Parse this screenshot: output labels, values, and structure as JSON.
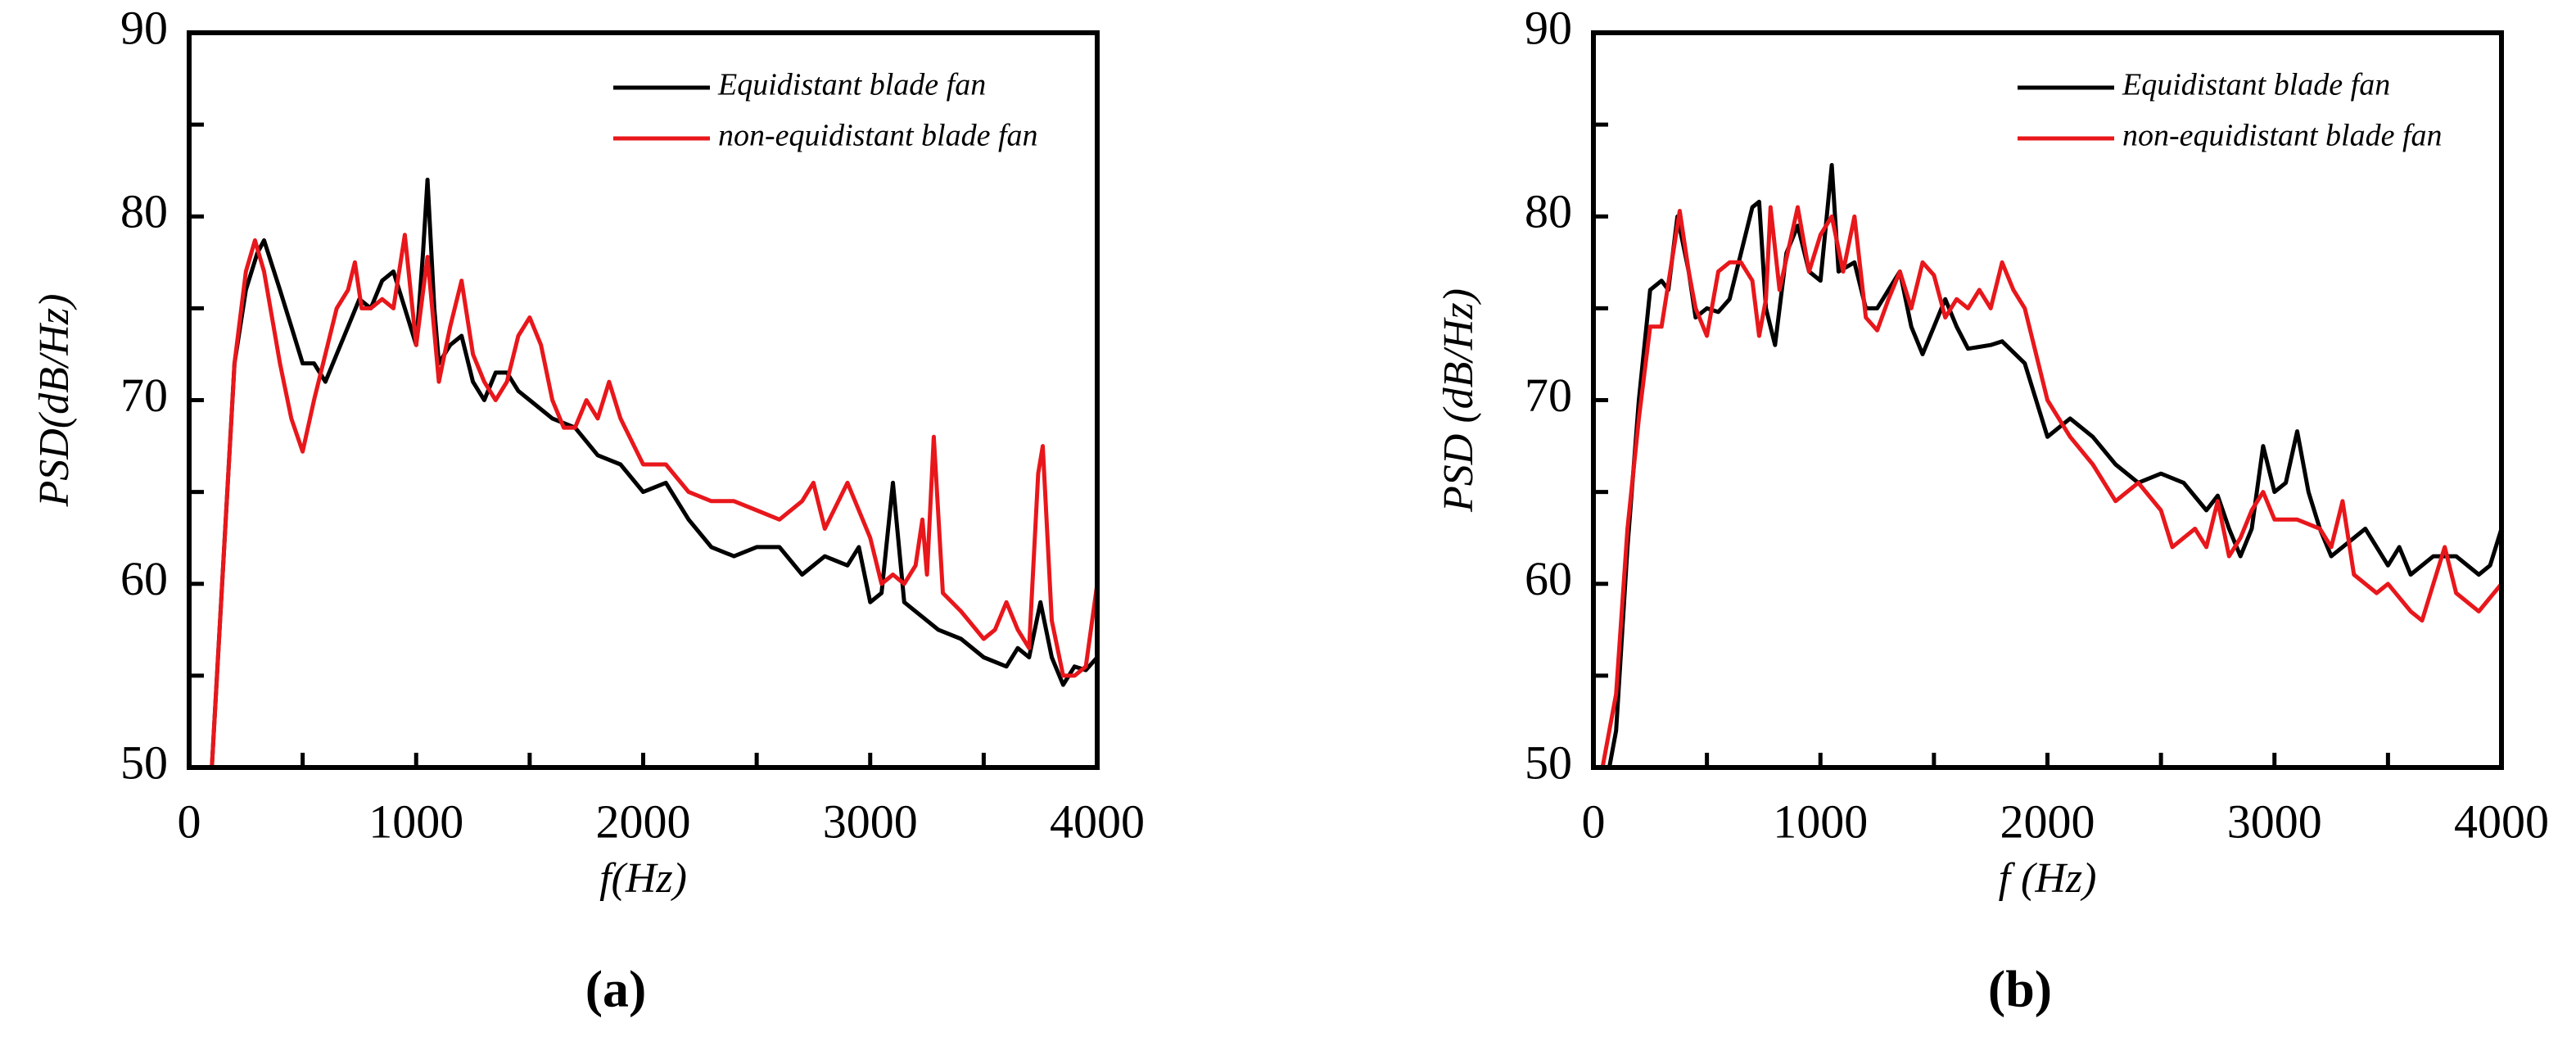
{
  "chart_data": [
    {
      "type": "line",
      "xlabel": "f(Hz)",
      "ylabel": "PSD(dB/Hz)",
      "caption": "(a)",
      "xlim": [
        0,
        4000
      ],
      "xticks": [
        0,
        1000,
        2000,
        3000,
        4000
      ],
      "ylim": [
        50,
        90
      ],
      "yticks": [
        50,
        60,
        70,
        80,
        90
      ],
      "legend": "upper right",
      "series": [
        {
          "name": "Equidistant blade fan",
          "color": "#000000",
          "x": [
            100,
            200,
            250,
            300,
            330,
            400,
            450,
            500,
            550,
            600,
            650,
            700,
            750,
            800,
            850,
            900,
            950,
            1000,
            1030,
            1050,
            1080,
            1100,
            1150,
            1200,
            1250,
            1300,
            1350,
            1400,
            1450,
            1500,
            1600,
            1700,
            1800,
            1900,
            2000,
            2100,
            2200,
            2300,
            2400,
            2500,
            2600,
            2700,
            2800,
            2900,
            2950,
            3000,
            3050,
            3100,
            3150,
            3200,
            3300,
            3400,
            3500,
            3600,
            3650,
            3700,
            3750,
            3800,
            3850,
            3900,
            3950,
            4000
          ],
          "values": [
            50,
            72,
            76,
            78,
            78.7,
            76,
            74,
            72,
            72,
            71,
            72.5,
            74,
            75.5,
            75,
            76.5,
            77,
            75,
            73,
            78,
            82,
            75,
            72,
            73,
            73.5,
            71,
            70,
            71.5,
            71.5,
            70.5,
            70,
            69,
            68.5,
            67,
            66.5,
            65,
            65.5,
            63.5,
            62,
            61.5,
            62,
            62,
            60.5,
            61.5,
            61,
            62,
            59,
            59.5,
            65.5,
            59,
            58.5,
            57.5,
            57,
            56,
            55.5,
            56.5,
            56,
            59,
            56,
            54.5,
            55.5,
            55.3,
            56
          ]
        },
        {
          "name": "non-equidistant blade fan",
          "color": "#e8171b",
          "x": [
            100,
            200,
            250,
            290,
            330,
            400,
            450,
            500,
            550,
            600,
            650,
            700,
            730,
            760,
            800,
            850,
            900,
            950,
            1000,
            1050,
            1100,
            1150,
            1200,
            1250,
            1300,
            1350,
            1400,
            1450,
            1500,
            1550,
            1600,
            1650,
            1700,
            1750,
            1800,
            1850,
            1900,
            2000,
            2100,
            2200,
            2300,
            2400,
            2500,
            2600,
            2700,
            2750,
            2800,
            2900,
            3000,
            3050,
            3100,
            3150,
            3200,
            3230,
            3250,
            3280,
            3320,
            3400,
            3500,
            3550,
            3600,
            3650,
            3700,
            3740,
            3760,
            3800,
            3850,
            3900,
            3950,
            4000
          ],
          "values": [
            50,
            72,
            77,
            78.7,
            77,
            72,
            69,
            67.2,
            70,
            72.5,
            75,
            76,
            77.5,
            75,
            75,
            75.5,
            75,
            79,
            73,
            77.8,
            71,
            74,
            76.5,
            72.5,
            71,
            70,
            71,
            73.5,
            74.5,
            73,
            70,
            68.5,
            68.5,
            70,
            69,
            71,
            69,
            66.5,
            66.5,
            65,
            64.5,
            64.5,
            64,
            63.5,
            64.5,
            65.5,
            63,
            65.5,
            62.5,
            60,
            60.5,
            60,
            61,
            63.5,
            60.5,
            68,
            59.5,
            58.5,
            57,
            57.5,
            59,
            57.5,
            56.5,
            66,
            67.5,
            58,
            55,
            55,
            55.5,
            60
          ]
        }
      ]
    },
    {
      "type": "line",
      "xlabel": "f (Hz)",
      "ylabel": "PSD (dB/Hz)",
      "caption": "(b)",
      "xlim": [
        0,
        4000
      ],
      "xticks": [
        0,
        1000,
        2000,
        3000,
        4000
      ],
      "ylim": [
        50,
        90
      ],
      "yticks": [
        50,
        60,
        70,
        80,
        90
      ],
      "legend": "upper right",
      "series": [
        {
          "name": "Equidistant blade fan",
          "color": "#000000",
          "x": [
            70,
            100,
            150,
            200,
            250,
            300,
            330,
            370,
            420,
            450,
            500,
            550,
            600,
            650,
            700,
            730,
            760,
            800,
            850,
            900,
            950,
            1000,
            1050,
            1080,
            1150,
            1200,
            1250,
            1300,
            1350,
            1400,
            1450,
            1500,
            1550,
            1600,
            1650,
            1750,
            1800,
            1900,
            2000,
            2050,
            2100,
            2200,
            2300,
            2400,
            2500,
            2600,
            2700,
            2750,
            2800,
            2850,
            2900,
            2950,
            3000,
            3050,
            3100,
            3150,
            3200,
            3250,
            3300,
            3400,
            3500,
            3550,
            3600,
            3700,
            3800,
            3900,
            3950,
            4000
          ],
          "values": [
            50,
            52,
            62,
            70,
            76,
            76.5,
            76,
            80,
            77,
            74.5,
            75,
            74.8,
            75.5,
            78,
            80.5,
            80.8,
            75,
            73,
            78,
            79.5,
            77,
            76.5,
            82.8,
            77,
            77.5,
            75,
            75,
            76,
            77,
            74,
            72.5,
            74,
            75.5,
            74,
            72.8,
            73,
            73.2,
            72,
            68,
            68.5,
            69,
            68,
            66.5,
            65.5,
            66,
            65.5,
            64,
            64.8,
            63,
            61.5,
            63,
            67.5,
            65,
            65.5,
            68.3,
            65,
            63,
            61.5,
            62,
            63,
            61,
            62,
            60.5,
            61.5,
            61.5,
            60.5,
            61,
            63
          ]
        },
        {
          "name": "non-equidistant blade fan",
          "color": "#e8171b",
          "x": [
            40,
            100,
            150,
            200,
            250,
            300,
            380,
            420,
            450,
            500,
            550,
            600,
            650,
            700,
            730,
            760,
            780,
            820,
            900,
            950,
            1000,
            1050,
            1100,
            1150,
            1200,
            1250,
            1300,
            1350,
            1400,
            1450,
            1500,
            1550,
            1600,
            1650,
            1700,
            1750,
            1800,
            1850,
            1900,
            2000,
            2100,
            2200,
            2300,
            2400,
            2500,
            2550,
            2650,
            2700,
            2750,
            2800,
            2850,
            2900,
            2950,
            3000,
            3100,
            3200,
            3250,
            3300,
            3350,
            3400,
            3450,
            3500,
            3600,
            3650,
            3700,
            3750,
            3800,
            3900,
            4000
          ],
          "values": [
            50,
            54,
            63,
            69,
            74,
            74,
            80.3,
            77,
            75,
            73.5,
            77,
            77.5,
            77.5,
            76.5,
            73.5,
            75.5,
            80.5,
            76,
            80.5,
            77,
            79,
            80,
            77,
            80,
            74.5,
            73.8,
            75.5,
            77,
            75,
            77.5,
            76.8,
            74.5,
            75.5,
            75,
            76,
            75,
            77.5,
            76,
            75,
            70,
            68,
            66.5,
            64.5,
            65.5,
            64,
            62,
            63,
            62,
            64.5,
            61.5,
            62.5,
            64,
            65,
            63.5,
            63.5,
            63,
            62,
            64.5,
            60.5,
            60,
            59.5,
            60,
            58.5,
            58,
            60,
            62,
            59.5,
            58.5,
            60
          ]
        }
      ]
    }
  ]
}
